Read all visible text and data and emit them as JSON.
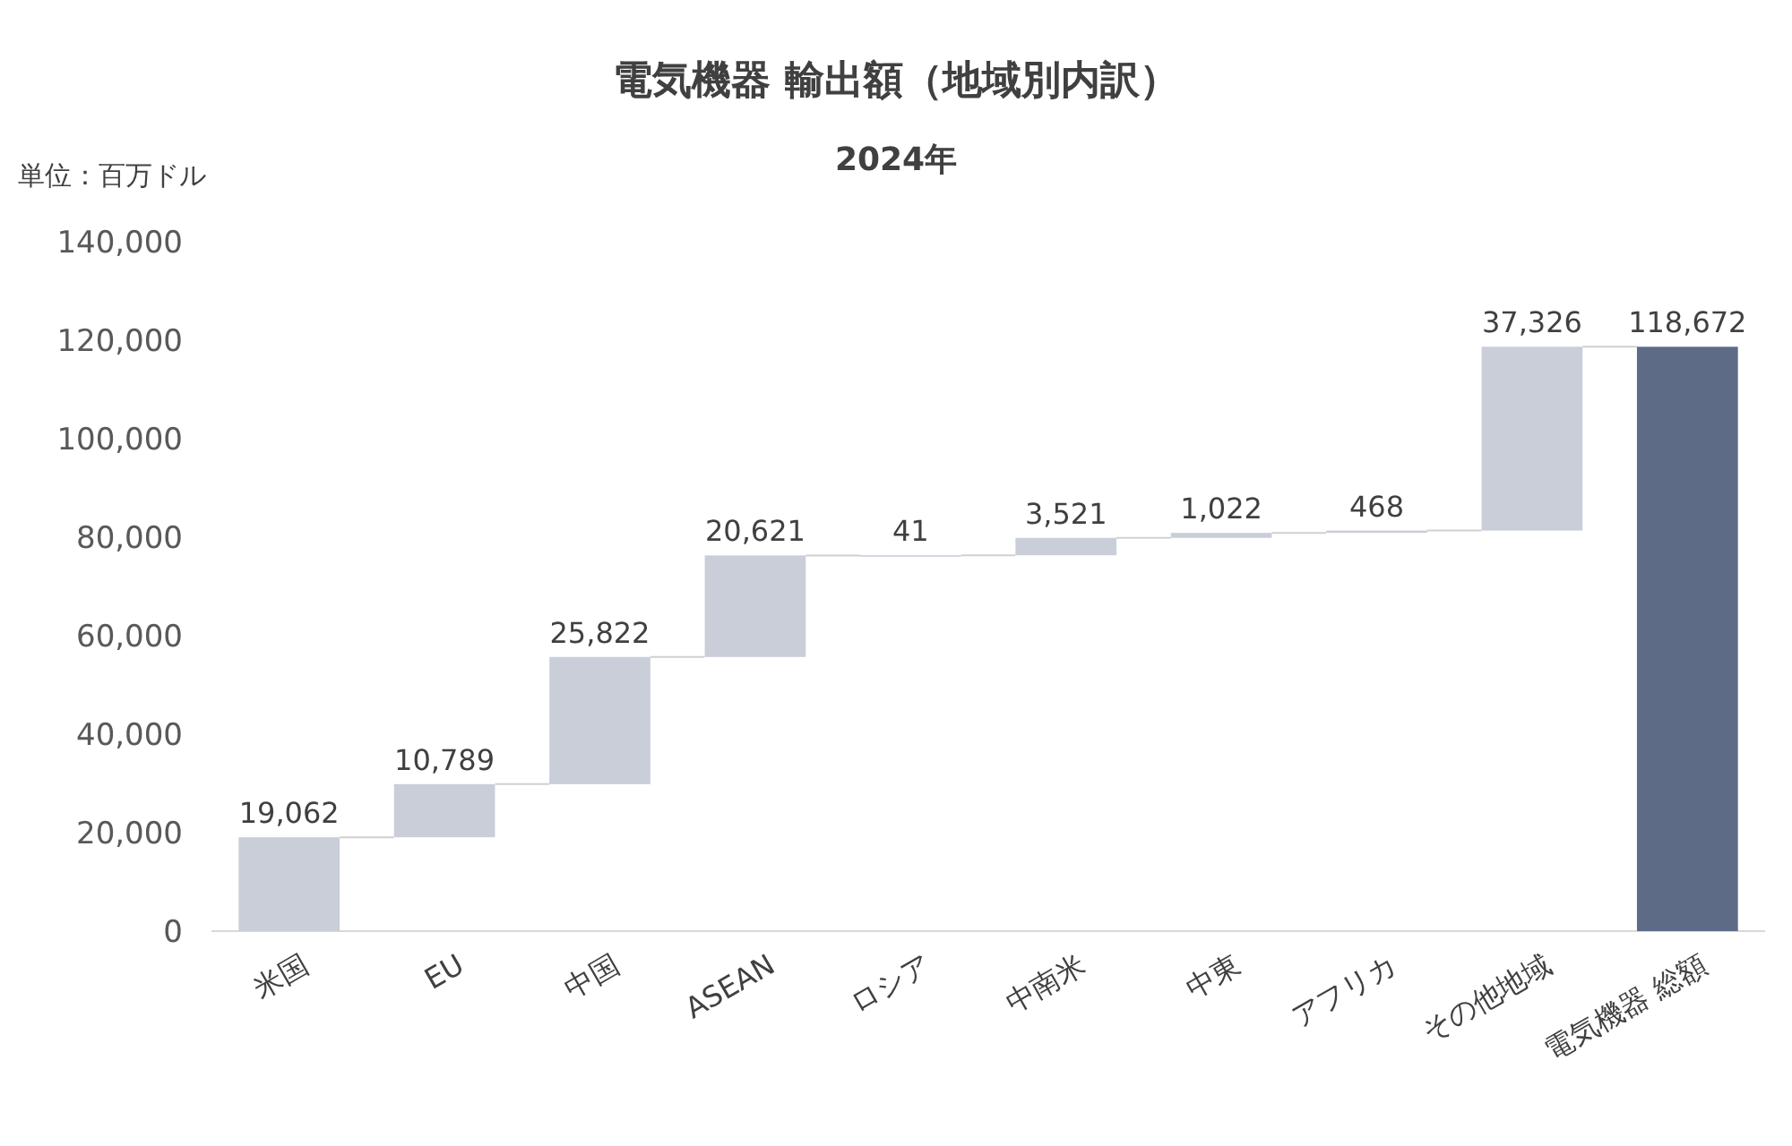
{
  "chart_data": {
    "type": "bar",
    "title": "電気機器 輸出額（地域別内訳）",
    "subtitle": "2024年",
    "ylabel": "単位：百万ドル",
    "categories": [
      "米国",
      "EU",
      "中国",
      "ASEAN",
      "ロシア",
      "中南米",
      "中東",
      "アフリカ",
      "その他地域",
      "電気機器 総額"
    ],
    "values": [
      19062,
      10789,
      25822,
      20621,
      41,
      3521,
      1022,
      468,
      37326,
      118672
    ],
    "base": [
      0,
      19062,
      29851,
      55673,
      76294,
      76335,
      79856,
      80878,
      81346,
      0
    ],
    "colors": [
      "#c9ced9",
      "#c9ced9",
      "#c9ced9",
      "#c9ced9",
      "#c9ced9",
      "#c9ced9",
      "#c9ced9",
      "#c9ced9",
      "#c9ced9",
      "#5e6b87"
    ],
    "ylim": [
      0,
      140000
    ],
    "yticks": [
      0,
      {
        "value": 20000,
        "label": "20,000"
      },
      {
        "value": 40000,
        "label": "40,000"
      },
      {
        "value": 60000,
        "label": "60,000"
      },
      {
        "value": 80000,
        "label": "80,000"
      },
      {
        "value": 100000,
        "label": "100,000"
      },
      {
        "value": 120000,
        "label": "120,000"
      },
      {
        "value": 140000,
        "label": "140,000"
      }
    ],
    "value_labels": [
      "19,062",
      "10,789",
      "25,822",
      "20,621",
      "41",
      "3,521",
      "1,022",
      "468",
      "37,326",
      "118,672"
    ]
  }
}
